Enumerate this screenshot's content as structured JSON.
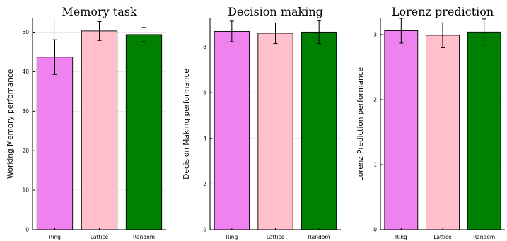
{
  "colors": {
    "Ring": "#ee82ee",
    "Lattice": "#ffc0cb",
    "Random": "#008000"
  },
  "chart_data": [
    {
      "type": "bar",
      "title": "Memory task",
      "ylabel": "Working Memory perfomance",
      "categories": [
        "Ring",
        "Lattice",
        "Random"
      ],
      "values": [
        43.7,
        50.3,
        49.4
      ],
      "errors": [
        4.4,
        2.4,
        1.8
      ],
      "ylim": [
        0,
        53.5
      ],
      "yticks": [
        0,
        10,
        20,
        30,
        40,
        50
      ],
      "grid": true
    },
    {
      "type": "bar",
      "title": "Decision making",
      "ylabel": "Decision Making performance",
      "categories": [
        "Ring",
        "Lattice",
        "Random"
      ],
      "values": [
        8.68,
        8.6,
        8.65
      ],
      "errors": [
        0.45,
        0.45,
        0.5
      ],
      "ylim": [
        0,
        9.25
      ],
      "yticks": [
        0,
        2,
        4,
        6,
        8
      ],
      "grid": true
    },
    {
      "type": "bar",
      "title": "Lorenz prediction",
      "ylabel": "Lorenz Prediction performance",
      "categories": [
        "Ring",
        "Lattice",
        "Random"
      ],
      "values": [
        3.06,
        2.99,
        3.04
      ],
      "errors": [
        0.19,
        0.19,
        0.2
      ],
      "ylim": [
        0,
        3.25
      ],
      "yticks": [
        0,
        1,
        2,
        3
      ],
      "grid": true
    }
  ]
}
